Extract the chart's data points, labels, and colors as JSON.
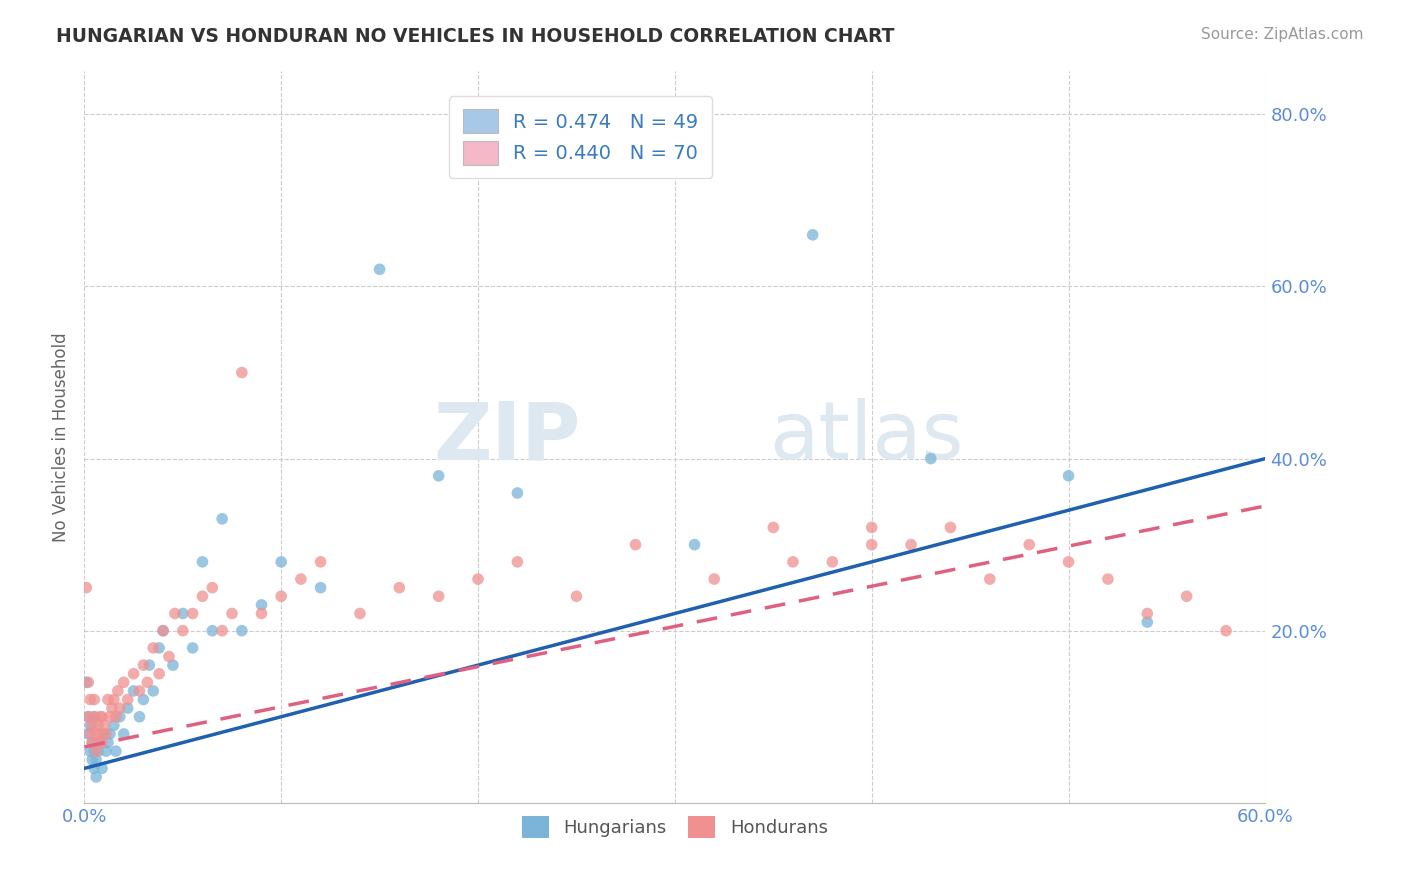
{
  "title": "HUNGARIAN VS HONDURAN NO VEHICLES IN HOUSEHOLD CORRELATION CHART",
  "source": "Source: ZipAtlas.com",
  "ylabel": "No Vehicles in Household",
  "legend_entries": [
    {
      "label": "R = 0.474   N = 49",
      "color": "#a8c8e8"
    },
    {
      "label": "R = 0.440   N = 70",
      "color": "#f4b8c8"
    }
  ],
  "bottom_legend": [
    "Hungarians",
    "Hondurans"
  ],
  "hungarian_color": "#7ab4d8",
  "honduran_color": "#f09090",
  "line_hungarian_color": "#2060b0",
  "line_honduran_color": "#e06080",
  "watermark_zip": "ZIP",
  "watermark_atlas": "atlas",
  "xmin": 0.0,
  "xmax": 0.6,
  "ymin": 0.0,
  "ymax": 0.85,
  "yticks": [
    0.0,
    0.2,
    0.4,
    0.6,
    0.8
  ],
  "ytick_labels": [
    "",
    "20.0%",
    "40.0%",
    "60.0%",
    "80.0%"
  ],
  "hung_line_x0": 0.0,
  "hung_line_y0": 0.04,
  "hung_line_x1": 0.6,
  "hung_line_y1": 0.4,
  "hond_line_x0": 0.0,
  "hond_line_y0": 0.065,
  "hond_line_x1": 0.6,
  "hond_line_y1": 0.345,
  "hungarian_x": [
    0.001,
    0.002,
    0.002,
    0.003,
    0.003,
    0.004,
    0.004,
    0.005,
    0.005,
    0.005,
    0.006,
    0.006,
    0.007,
    0.008,
    0.009,
    0.01,
    0.011,
    0.012,
    0.013,
    0.015,
    0.016,
    0.018,
    0.02,
    0.022,
    0.025,
    0.028,
    0.03,
    0.033,
    0.035,
    0.038,
    0.04,
    0.045,
    0.05,
    0.055,
    0.06,
    0.065,
    0.07,
    0.08,
    0.09,
    0.1,
    0.12,
    0.15,
    0.18,
    0.22,
    0.31,
    0.37,
    0.43,
    0.5,
    0.54
  ],
  "hungarian_y": [
    0.14,
    0.1,
    0.08,
    0.06,
    0.09,
    0.05,
    0.07,
    0.04,
    0.06,
    0.1,
    0.03,
    0.05,
    0.06,
    0.07,
    0.04,
    0.08,
    0.06,
    0.07,
    0.08,
    0.09,
    0.06,
    0.1,
    0.08,
    0.11,
    0.13,
    0.1,
    0.12,
    0.16,
    0.13,
    0.18,
    0.2,
    0.16,
    0.22,
    0.18,
    0.28,
    0.2,
    0.33,
    0.2,
    0.23,
    0.28,
    0.25,
    0.62,
    0.38,
    0.36,
    0.3,
    0.66,
    0.4,
    0.38,
    0.21
  ],
  "honduran_x": [
    0.001,
    0.002,
    0.002,
    0.003,
    0.003,
    0.004,
    0.004,
    0.005,
    0.005,
    0.006,
    0.006,
    0.007,
    0.007,
    0.008,
    0.008,
    0.009,
    0.009,
    0.01,
    0.011,
    0.012,
    0.013,
    0.014,
    0.015,
    0.016,
    0.017,
    0.018,
    0.02,
    0.022,
    0.025,
    0.028,
    0.03,
    0.032,
    0.035,
    0.038,
    0.04,
    0.043,
    0.046,
    0.05,
    0.055,
    0.06,
    0.065,
    0.07,
    0.075,
    0.08,
    0.09,
    0.1,
    0.11,
    0.12,
    0.14,
    0.16,
    0.18,
    0.2,
    0.22,
    0.25,
    0.28,
    0.32,
    0.36,
    0.4,
    0.44,
    0.48,
    0.5,
    0.52,
    0.54,
    0.56,
    0.58,
    0.4,
    0.42,
    0.46,
    0.38,
    0.35
  ],
  "honduran_y": [
    0.25,
    0.14,
    0.1,
    0.08,
    0.12,
    0.07,
    0.09,
    0.1,
    0.12,
    0.06,
    0.08,
    0.07,
    0.09,
    0.1,
    0.08,
    0.07,
    0.1,
    0.09,
    0.08,
    0.12,
    0.1,
    0.11,
    0.12,
    0.1,
    0.13,
    0.11,
    0.14,
    0.12,
    0.15,
    0.13,
    0.16,
    0.14,
    0.18,
    0.15,
    0.2,
    0.17,
    0.22,
    0.2,
    0.22,
    0.24,
    0.25,
    0.2,
    0.22,
    0.5,
    0.22,
    0.24,
    0.26,
    0.28,
    0.22,
    0.25,
    0.24,
    0.26,
    0.28,
    0.24,
    0.3,
    0.26,
    0.28,
    0.3,
    0.32,
    0.3,
    0.28,
    0.26,
    0.22,
    0.24,
    0.2,
    0.32,
    0.3,
    0.26,
    0.28,
    0.32
  ]
}
